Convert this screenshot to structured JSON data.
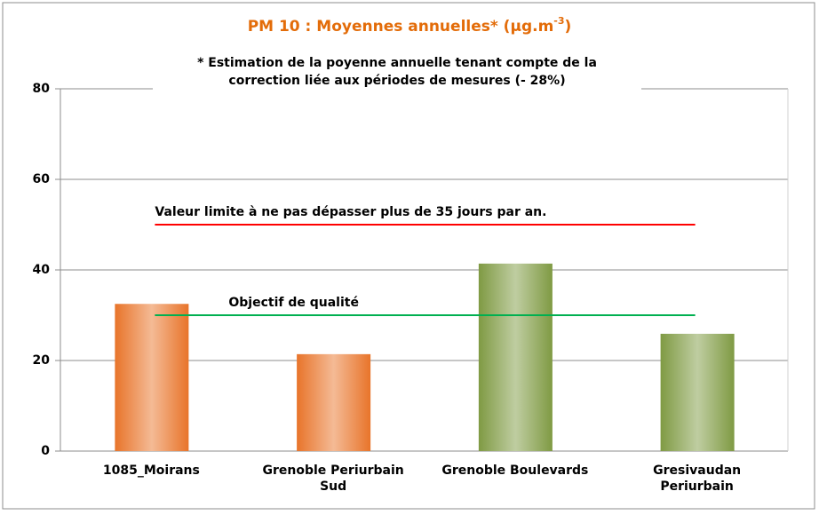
{
  "chart_data": {
    "type": "bar",
    "title": "PM 10 : Moyennes annuelles*  (µg.m",
    "title_superscript": "-3",
    "title_end": ")",
    "title_color": "#e36c09",
    "subtitle": [
      "* Estimation de la poyenne annuelle tenant compte de la",
      "correction liée aux périodes de mesures (- 28%)"
    ],
    "categories": [
      "1085_Moirans",
      "Grenoble Periurbain\nSud",
      "Grenoble Boulevards",
      "Gresivaudan\nPeriurbain"
    ],
    "values": [
      32.5,
      21.4,
      41.4,
      25.9
    ],
    "colors": [
      "#e8742a",
      "#e8742a",
      "#7f9a43",
      "#7f9a43"
    ],
    "ylim": [
      0,
      80
    ],
    "yticks": [
      0,
      20,
      40,
      60,
      80
    ],
    "grid": true,
    "reference_lines": [
      {
        "label": "Valeur limite à ne pas dépasser plus de 35 jours par an.",
        "value": 50,
        "color": "#ff0000"
      },
      {
        "label": "Objectif de qualité",
        "value": 30,
        "color": "#00b050"
      }
    ]
  }
}
